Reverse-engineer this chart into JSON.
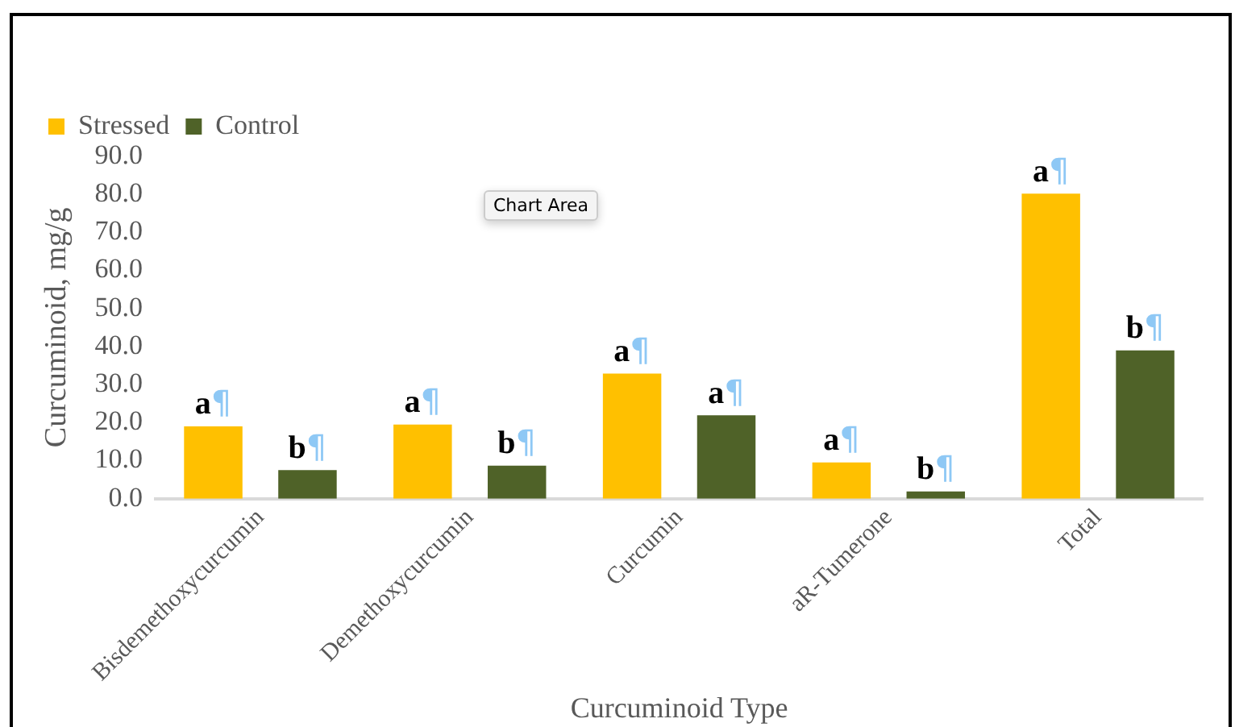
{
  "chart_data": {
    "type": "bar",
    "xlabel": "Curcuminoid Type",
    "ylabel": "Curcuminoid, mg/g",
    "categories": [
      "Bisdemethoxycurcumin",
      "Demethoxycurcumin",
      "Curcumin",
      "aR-Tumerone",
      "Total"
    ],
    "series": [
      {
        "name": "Stressed",
        "color": "#ffc000",
        "values": [
          19.0,
          19.5,
          32.9,
          9.5,
          80.2
        ],
        "value_labels": [
          "a¶",
          "a¶",
          "a¶",
          "a¶",
          "a¶"
        ]
      },
      {
        "name": "Control",
        "color": "#4f6228",
        "values": [
          7.5,
          8.7,
          21.9,
          1.9,
          39.0
        ],
        "value_labels": [
          "b¶",
          "b¶",
          "a¶",
          "b¶",
          "b¶"
        ]
      }
    ],
    "ylim": [
      0,
      90
    ],
    "yticks": [
      {
        "value": 0,
        "label": "0.0"
      },
      {
        "value": 10,
        "label": "10.0"
      },
      {
        "value": 20,
        "label": "20.0"
      },
      {
        "value": 30,
        "label": "30.0"
      },
      {
        "value": 40,
        "label": "40.0"
      },
      {
        "value": 50,
        "label": "50.0"
      },
      {
        "value": 60,
        "label": "60.0"
      },
      {
        "value": 70,
        "label": "70.0"
      },
      {
        "value": 80,
        "label": "80.0"
      },
      {
        "value": 90,
        "label": "90.0"
      }
    ],
    "grid": false,
    "legend": "top left",
    "annotations": [
      "Chart Area"
    ]
  }
}
